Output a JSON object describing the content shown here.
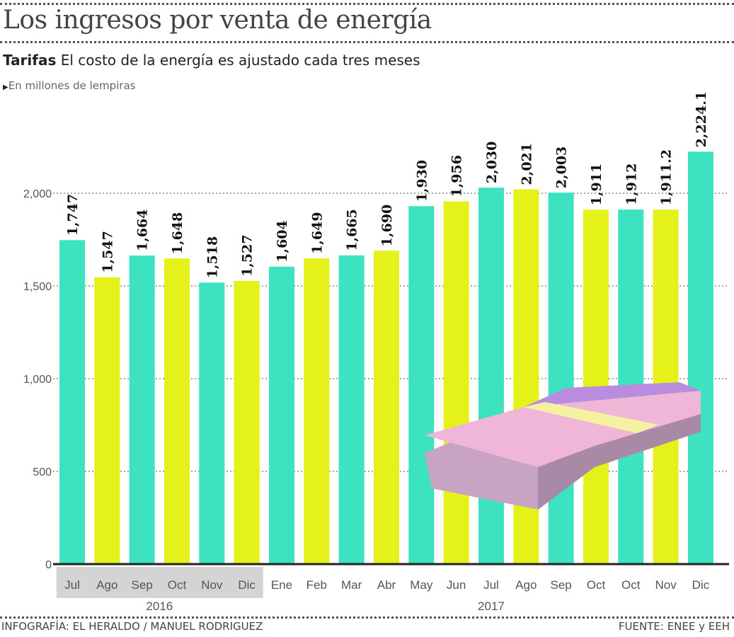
{
  "chart_data": {
    "type": "bar",
    "title": "Los ingresos por venta de energía",
    "subtitle_bold": "Tarifas",
    "subtitle": "El costo de la energía es ajustado cada tres meses",
    "unit_note": "En millones de lempiras",
    "categories": [
      "Jul",
      "Ago",
      "Sep",
      "Oct",
      "Nov",
      "Dic",
      "Ene",
      "Feb",
      "Mar",
      "Abr",
      "May",
      "Jun",
      "Jul",
      "Ago",
      "Sep",
      "Oct",
      "Oct",
      "Nov",
      "Dic"
    ],
    "values": [
      1747,
      1547,
      1664,
      1648,
      1518,
      1527,
      1604,
      1649,
      1665,
      1690,
      1930,
      1956,
      2030,
      2021,
      2003,
      1911,
      1912,
      1911.2,
      2224.1
    ],
    "value_labels": [
      "1,747",
      "1,547",
      "1,664",
      "1,648",
      "1,518",
      "1,527",
      "1,604",
      "1,649",
      "1,665",
      "1,690",
      "1,930",
      "1,956",
      "2,030",
      "2,021",
      "2,003",
      "1,911",
      "1,912",
      "1,911.2",
      "2,224.1"
    ],
    "year_groups": [
      {
        "label": "2016",
        "start": 0,
        "end": 5
      },
      {
        "label": "2017",
        "start": 6,
        "end": 18
      }
    ],
    "yticks": [
      0,
      500,
      1000,
      1500,
      2000
    ],
    "ytick_labels": [
      "0",
      "500",
      "1,000",
      "1,500",
      "2,000"
    ],
    "ylim": [
      0,
      2300
    ],
    "grid": true,
    "colors": {
      "odd": "#3de2c1",
      "even": "#e4f21a",
      "highlight_band": "#d4d4d4"
    },
    "xlabel": "",
    "ylabel": ""
  },
  "footer": {
    "credit": "INFOGRAFÍA: EL HERALDO / MANUEL RODRIGUEZ",
    "source": "FUENTE: ENEE y EEH"
  }
}
